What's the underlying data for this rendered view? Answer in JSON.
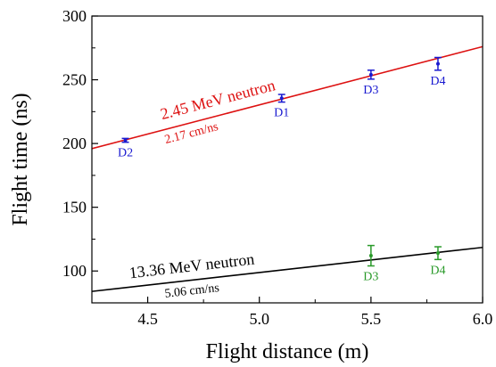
{
  "chart_data": {
    "type": "scatter",
    "xlabel": "Flight distance (m)",
    "ylabel": "Flight time (ns)",
    "xlim": [
      4.25,
      6.0
    ],
    "ylim": [
      75,
      300
    ],
    "x_ticks": [
      4.5,
      5.0,
      5.5,
      6.0
    ],
    "x_tick_labels": [
      "4.5",
      "5.0",
      "5.5",
      "6.0"
    ],
    "y_ticks": [
      100,
      150,
      200,
      250,
      300
    ],
    "y_tick_labels": [
      "100",
      "150",
      "200",
      "250",
      "300"
    ],
    "grid": false,
    "colors": {
      "red": "#dd1111",
      "blue": "#1a1ad0",
      "green": "#2a9a2a",
      "black": "#000000"
    },
    "lines": [
      {
        "label": "2.45 MeV neutron",
        "speed_label": "2.17 cm/ns",
        "color": "#dd1111",
        "x": [
          4.25,
          6.0
        ],
        "y": [
          196.0,
          276.0
        ]
      },
      {
        "label": "13.36 MeV neutron",
        "speed_label": "5.06 cm/ns",
        "color": "#000000",
        "x": [
          4.25,
          6.0
        ],
        "y": [
          84.0,
          118.5
        ]
      }
    ],
    "series": [
      {
        "color": "#1a1ad0",
        "points": [
          {
            "label": "D2",
            "x": 4.4,
            "y": 202.5,
            "err": 1.5
          },
          {
            "label": "D1",
            "x": 5.1,
            "y": 235.5,
            "err": 3
          },
          {
            "label": "D3",
            "x": 5.5,
            "y": 254.0,
            "err": 3.5
          },
          {
            "label": "D4",
            "x": 5.8,
            "y": 262.5,
            "err": 5
          }
        ]
      },
      {
        "color": "#2a9a2a",
        "points": [
          {
            "label": "D3",
            "x": 5.5,
            "y": 112.0,
            "err": 8
          },
          {
            "label": "D4",
            "x": 5.8,
            "y": 114.0,
            "err": 5
          }
        ]
      }
    ]
  }
}
